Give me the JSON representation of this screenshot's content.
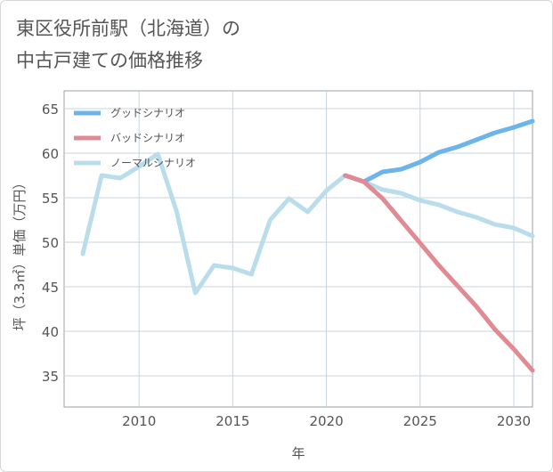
{
  "title_line1": "東区役所前駅（北海道）の",
  "title_line2": "中古戸建ての価格推移",
  "chart_data": {
    "type": "line",
    "title": "東区役所前駅（北海道）の中古戸建ての価格推移",
    "xlabel": "年",
    "ylabel": "坪（3.3㎡）単価（万円）",
    "xlim": [
      2006,
      2031
    ],
    "ylim": [
      31.5,
      67
    ],
    "xticks": [
      2010,
      2015,
      2020,
      2025,
      2030
    ],
    "yticks": [
      35,
      40,
      45,
      50,
      55,
      60,
      65
    ],
    "grid": true,
    "legend_position": "top-left",
    "series": [
      {
        "name": "グッドシナリオ",
        "color": "#6cb4ea",
        "x": [
          2021,
          2022,
          2023,
          2024,
          2025,
          2026,
          2027,
          2028,
          2029,
          2030,
          2031
        ],
        "y": [
          57.5,
          56.8,
          57.9,
          58.2,
          59.0,
          60.1,
          60.7,
          61.5,
          62.3,
          62.9,
          63.6
        ]
      },
      {
        "name": "バッドシナリオ",
        "color": "#e08a94",
        "x": [
          2021,
          2022,
          2023,
          2024,
          2025,
          2026,
          2027,
          2028,
          2029,
          2030,
          2031
        ],
        "y": [
          57.5,
          56.8,
          54.9,
          52.4,
          49.9,
          47.4,
          45.1,
          42.8,
          40.2,
          38.0,
          35.6
        ]
      },
      {
        "name": "ノーマルシナリオ",
        "color": "#b9ddea",
        "x": [
          2007,
          2008,
          2009,
          2010,
          2011,
          2012,
          2013,
          2014,
          2015,
          2016,
          2017,
          2018,
          2019,
          2020,
          2021,
          2022,
          2023,
          2024,
          2025,
          2026,
          2027,
          2028,
          2029,
          2030,
          2031
        ],
        "y": [
          48.7,
          57.5,
          57.2,
          58.5,
          59.9,
          53.5,
          44.3,
          47.4,
          47.1,
          46.4,
          52.5,
          54.9,
          53.4,
          55.8,
          57.5,
          56.8,
          55.9,
          55.5,
          54.7,
          54.2,
          53.4,
          52.8,
          52.0,
          51.6,
          50.7
        ]
      }
    ]
  }
}
